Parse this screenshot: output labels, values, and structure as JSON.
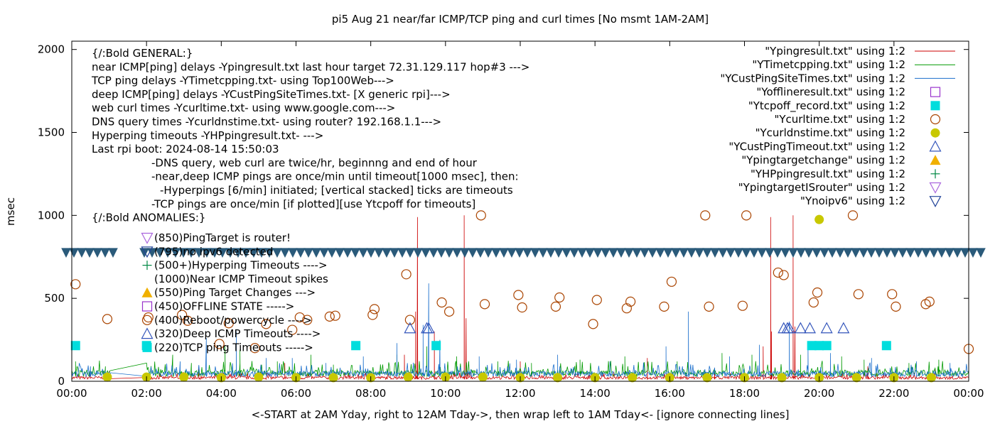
{
  "chart_data": {
    "type": "line",
    "title": "pi5 Aug 21  near/far ICMP/TCP ping and curl times [No msmt 1AM-2AM]",
    "xlabel": "<-START at 2AM Yday, right to 12AM Tday->, then wrap left to 1AM Tday<- [ignore connecting lines]",
    "ylabel": "msec",
    "xlim": [
      0,
      24
    ],
    "ylim": [
      0,
      2050
    ],
    "x_ticks": [
      {
        "v": 0,
        "label": "00:00"
      },
      {
        "v": 2,
        "label": "02:00"
      },
      {
        "v": 4,
        "label": "04:00"
      },
      {
        "v": 6,
        "label": "06:00"
      },
      {
        "v": 8,
        "label": "08:00"
      },
      {
        "v": 10,
        "label": "10:00"
      },
      {
        "v": 12,
        "label": "12:00"
      },
      {
        "v": 14,
        "label": "14:00"
      },
      {
        "v": 16,
        "label": "16:00"
      },
      {
        "v": 18,
        "label": "18:00"
      },
      {
        "v": 20,
        "label": "20:00"
      },
      {
        "v": 22,
        "label": "22:00"
      },
      {
        "v": 24,
        "label": "00:00"
      }
    ],
    "y_ticks": [
      {
        "v": 0,
        "label": "0"
      },
      {
        "v": 500,
        "label": "500"
      },
      {
        "v": 1000,
        "label": "1000"
      },
      {
        "v": 1500,
        "label": "1500"
      },
      {
        "v": 2000,
        "label": "2000"
      }
    ],
    "legend_position": "top-right",
    "legend": [
      {
        "label": "\"Ypingresult.txt\" using 1:2",
        "kind": "line",
        "color": "#cc0000"
      },
      {
        "label": "\"YTimetcpping.txt\" using 1:2",
        "kind": "line",
        "color": "#009900"
      },
      {
        "label": "\"YCustPingSiteTimes.txt\" using 1:2",
        "kind": "line",
        "color": "#1a6ecc"
      },
      {
        "label": "\"Yofflineresult.txt\" using 1:2",
        "kind": "open-square",
        "color": "#9933cc"
      },
      {
        "label": "\"Ytcpoff_record.txt\" using 1:2",
        "kind": "filled-square",
        "color": "#00dddd"
      },
      {
        "label": "\"Ycurltime.txt\" using 1:2",
        "kind": "open-circle",
        "color": "#aa4400"
      },
      {
        "label": "\"Ycurldnstime.txt\" using 1:2",
        "kind": "filled-circle",
        "color": "#c8c800"
      },
      {
        "label": "\"YCustPingTimeout.txt\" using 1:2",
        "kind": "open-triangle",
        "color": "#3355bb"
      },
      {
        "label": "\"Ypingtargetchange\" using 1:2",
        "kind": "filled-triangle",
        "color": "#f0b000"
      },
      {
        "label": "\"YHPpingresult.txt\" using 1:2",
        "kind": "plus",
        "color": "#008844"
      },
      {
        "label": "\"YpingtargetISrouter\" using 1:2",
        "kind": "open-down-triangle",
        "color": "#aa66dd"
      },
      {
        "label": "\"Ynoipv6\" using 1:2",
        "kind": "open-down-triangle",
        "color": "#224499"
      }
    ],
    "annotations": [
      "{/:Bold GENERAL:}",
      "near ICMP[ping] delays -Ypingresult.txt last hour target 72.31.129.117 hop#3 --->",
      "TCP ping delays -YTimetcpping.txt- using Top100Web--->",
      "deep ICMP[ping] delays -YCustPingSiteTimes.txt- [X generic rpi]--->",
      "web curl times -Ycurltime.txt- using www.google.com--->",
      "DNS query times -Ycurldnstime.txt- using router? 192.168.1.1--->",
      "Hyperping timeouts -YHPpingresult.txt- --->",
      "Last rpi boot: 2024-08-14 15:50:03",
      "-DNS query, web curl are twice/hr, beginnng and end of hour",
      "-near,deep ICMP pings are once/min until timeout[1000 msec], then:",
      "-Hyperpings [6/min] initiated; [vertical stacked] ticks are timeouts",
      "-TCP pings are once/min [if plotted][use Ytcpoff for timeouts]",
      "{/:Bold ANOMALIES:}"
    ],
    "anomalies": [
      {
        "label": "(850)PingTarget is router!",
        "value": 850,
        "kind": "open-down-triangle",
        "color": "#aa66dd"
      },
      {
        "label": "(795)no ipv6 detected",
        "value": 795,
        "kind": "open-down-triangle",
        "color": "#224499"
      },
      {
        "label": "(500+)Hyperping Timeouts ---->",
        "value": 500,
        "kind": "plus",
        "color": "#008844"
      },
      {
        "label": "(1000)Near ICMP Timeout spikes",
        "value": 1000,
        "kind": "none",
        "color": "#000000"
      },
      {
        "label": "(550)Ping Target Changes --->",
        "value": 550,
        "kind": "filled-triangle",
        "color": "#f0b000"
      },
      {
        "label": "(450)OFFLINE STATE ----->",
        "value": 450,
        "kind": "open-square",
        "color": "#9933cc"
      },
      {
        "label": "(400)Reboot/powercycle ---->",
        "value": 400,
        "kind": "open-circle",
        "color": "#aa4400"
      },
      {
        "label": "(320)Deep ICMP Timeouts ---->",
        "value": 320,
        "kind": "open-triangle",
        "color": "#3355bb"
      },
      {
        "label": "(220)TCP ping Timeouts ----->",
        "value": 220,
        "kind": "filled-square",
        "color": "#00dddd"
      }
    ],
    "noipv6_band": {
      "value": 775,
      "color": "#2a5a7a"
    },
    "series": [
      {
        "name": "Ypingresult.txt",
        "color": "#cc0000",
        "base": 12,
        "noise": 18,
        "spikes": [
          [
            1.0,
            60
          ],
          [
            3.4,
            90
          ],
          [
            5.7,
            110
          ],
          [
            8.9,
            160
          ],
          [
            9.2,
            420
          ],
          [
            9.25,
            990
          ],
          [
            9.7,
            300
          ],
          [
            10.5,
            1000
          ],
          [
            10.55,
            380
          ],
          [
            12.0,
            120
          ],
          [
            15.4,
            140
          ],
          [
            17.2,
            80
          ],
          [
            18.5,
            210
          ],
          [
            18.7,
            990
          ],
          [
            18.72,
            300
          ],
          [
            19.3,
            1000
          ],
          [
            19.35,
            330
          ],
          [
            21.3,
            90
          ],
          [
            23.1,
            70
          ]
        ]
      },
      {
        "name": "YTimetcpping.txt",
        "color": "#009900",
        "base": 30,
        "noise": 38,
        "spikes": [
          [
            0.1,
            120
          ],
          [
            0.9,
            90
          ],
          [
            2.7,
            160
          ],
          [
            3.2,
            110
          ],
          [
            4.1,
            210
          ],
          [
            4.5,
            190
          ],
          [
            5.5,
            120
          ],
          [
            6.4,
            160
          ],
          [
            7.0,
            100
          ],
          [
            8.7,
            160
          ],
          [
            9.5,
            210
          ],
          [
            10.3,
            150
          ],
          [
            11.4,
            120
          ],
          [
            12.3,
            110
          ],
          [
            13.6,
            130
          ],
          [
            14.8,
            150
          ],
          [
            16.2,
            120
          ],
          [
            17.4,
            170
          ],
          [
            18.2,
            160
          ],
          [
            19.5,
            160
          ],
          [
            20.6,
            150
          ],
          [
            21.2,
            130
          ],
          [
            22.4,
            110
          ],
          [
            23.2,
            130
          ]
        ]
      },
      {
        "name": "YCustPingSiteTimes.txt",
        "color": "#1a6ecc",
        "base": 28,
        "noise": 34,
        "spikes": [
          [
            0.5,
            90
          ],
          [
            2.9,
            120
          ],
          [
            3.6,
            260
          ],
          [
            4.4,
            300
          ],
          [
            5.2,
            140
          ],
          [
            5.9,
            140
          ],
          [
            6.8,
            110
          ],
          [
            7.8,
            150
          ],
          [
            8.7,
            230
          ],
          [
            9.4,
            340
          ],
          [
            9.55,
            590
          ],
          [
            9.85,
            250
          ],
          [
            10.9,
            150
          ],
          [
            11.9,
            130
          ],
          [
            13.0,
            160
          ],
          [
            14.4,
            120
          ],
          [
            15.9,
            210
          ],
          [
            16.5,
            420
          ],
          [
            17.6,
            150
          ],
          [
            18.4,
            220
          ],
          [
            19.2,
            360
          ],
          [
            19.7,
            210
          ],
          [
            20.3,
            170
          ],
          [
            21.4,
            140
          ],
          [
            22.6,
            120
          ],
          [
            23.5,
            110
          ]
        ]
      }
    ],
    "open_circles": [
      [
        0.1,
        585
      ],
      [
        0.95,
        375
      ],
      [
        2.05,
        385
      ],
      [
        2.95,
        400
      ],
      [
        3.1,
        365
      ],
      [
        3.95,
        225
      ],
      [
        4.2,
        350
      ],
      [
        4.9,
        200
      ],
      [
        5.2,
        345
      ],
      [
        5.9,
        310
      ],
      [
        6.1,
        385
      ],
      [
        6.3,
        370
      ],
      [
        6.9,
        390
      ],
      [
        7.05,
        395
      ],
      [
        8.05,
        400
      ],
      [
        8.1,
        435
      ],
      [
        8.95,
        645
      ],
      [
        9.05,
        370
      ],
      [
        9.9,
        475
      ],
      [
        10.1,
        420
      ],
      [
        10.95,
        1000
      ],
      [
        11.05,
        465
      ],
      [
        11.95,
        520
      ],
      [
        12.05,
        445
      ],
      [
        12.95,
        450
      ],
      [
        13.05,
        505
      ],
      [
        13.95,
        345
      ],
      [
        14.05,
        490
      ],
      [
        14.85,
        440
      ],
      [
        14.95,
        480
      ],
      [
        15.85,
        450
      ],
      [
        16.05,
        600
      ],
      [
        16.95,
        1000
      ],
      [
        17.05,
        450
      ],
      [
        17.95,
        455
      ],
      [
        18.05,
        1000
      ],
      [
        18.9,
        655
      ],
      [
        19.05,
        640
      ],
      [
        19.85,
        475
      ],
      [
        19.95,
        535
      ],
      [
        20.9,
        1000
      ],
      [
        21.05,
        525
      ],
      [
        21.95,
        525
      ],
      [
        22.05,
        450
      ],
      [
        22.85,
        465
      ],
      [
        22.95,
        480
      ],
      [
        24.0,
        195
      ]
    ],
    "filled_circles": [
      [
        20.0,
        975
      ],
      [
        0.95,
        25
      ],
      [
        2.0,
        25
      ],
      [
        3.0,
        25
      ],
      [
        4.0,
        22
      ],
      [
        5.0,
        25
      ],
      [
        6.0,
        22
      ],
      [
        7.0,
        22
      ],
      [
        8.0,
        22
      ],
      [
        9.0,
        25
      ],
      [
        10.0,
        25
      ],
      [
        11.0,
        25
      ],
      [
        12.0,
        22
      ],
      [
        13.0,
        22
      ],
      [
        14.0,
        22
      ],
      [
        15.0,
        22
      ],
      [
        16.0,
        22
      ],
      [
        17.0,
        22
      ],
      [
        18.0,
        22
      ],
      [
        19.0,
        22
      ],
      [
        20.0,
        22
      ],
      [
        21.0,
        22
      ],
      [
        22.0,
        22
      ],
      [
        23.0,
        22
      ]
    ],
    "filled_squares": [
      [
        0.1,
        215
      ],
      [
        2.0,
        215
      ],
      [
        7.6,
        215
      ],
      [
        9.75,
        215
      ],
      [
        19.8,
        215
      ],
      [
        20.0,
        215
      ],
      [
        20.2,
        215
      ],
      [
        21.8,
        215
      ]
    ],
    "open_triangles": [
      [
        9.05,
        320
      ],
      [
        9.5,
        320
      ],
      [
        9.55,
        320
      ],
      [
        19.05,
        320
      ],
      [
        19.15,
        320
      ],
      [
        19.2,
        320
      ],
      [
        19.5,
        320
      ],
      [
        19.75,
        320
      ],
      [
        20.2,
        320
      ],
      [
        20.65,
        320
      ]
    ]
  }
}
